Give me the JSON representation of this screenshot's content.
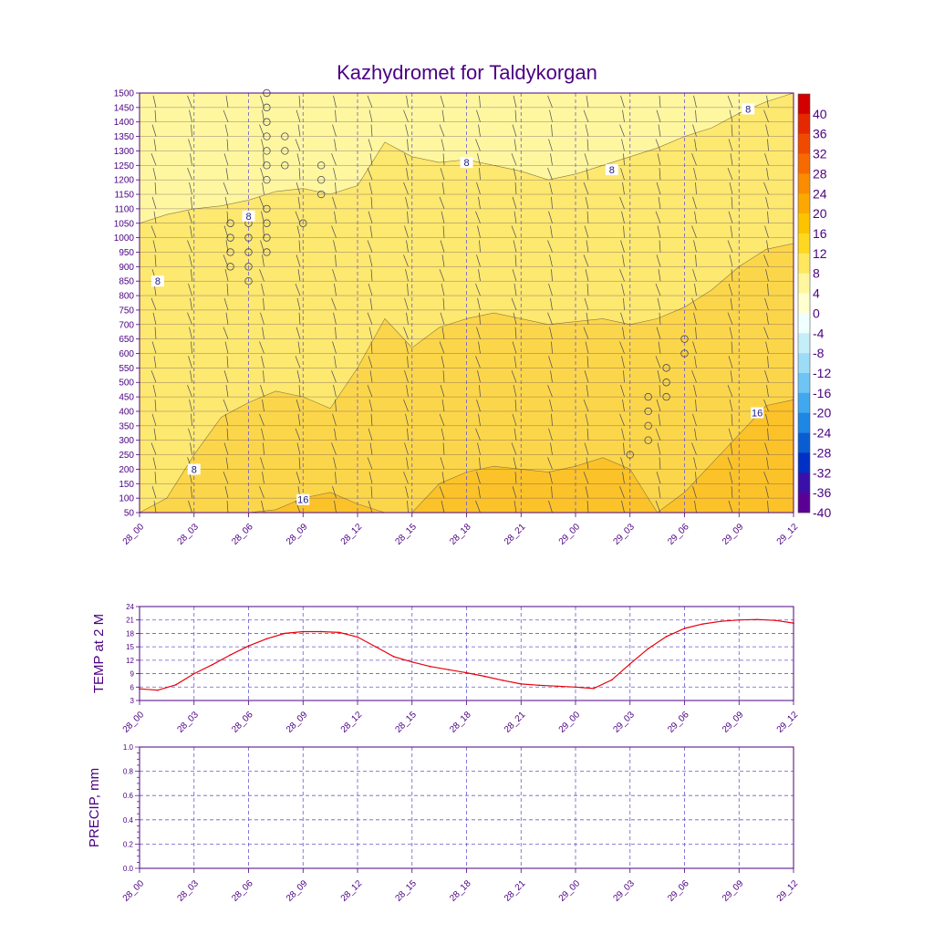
{
  "title": "Kazhydromet for Taldykorgan",
  "time_labels": [
    "28_00",
    "28_03",
    "28_06",
    "28_09",
    "28_12",
    "28_15",
    "28_18",
    "28_21",
    "29_00",
    "29_03",
    "29_06",
    "29_09",
    "29_12"
  ],
  "colors": {
    "axis": "#4b0082",
    "grid": "#6a5acd",
    "temp_line": "#e8000b",
    "barb": "#4a4a5a",
    "contour": "#8a7a40",
    "fill_0_4": "#ffffd8",
    "fill_4_8": "#fff7a0",
    "fill_8_12": "#fde870",
    "fill_12_16": "#fcd64a",
    "fill_16_20": "#fbc22a"
  },
  "chart_data": [
    {
      "id": "cross-section",
      "type": "heatmap",
      "title": "Kazhydromet for Taldykorgan",
      "xlabel": "",
      "ylabel": "",
      "x_range_hours": [
        0,
        36
      ],
      "y_ticks": [
        1500,
        1450,
        1400,
        1350,
        1300,
        1250,
        1200,
        1150,
        1100,
        1050,
        1000,
        950,
        900,
        850,
        800,
        750,
        700,
        650,
        600,
        550,
        500,
        450,
        400,
        350,
        300,
        250,
        200,
        150,
        100,
        50
      ],
      "ylim": [
        50,
        1500
      ],
      "colorbar": {
        "labels": [
          "40",
          "36",
          "32",
          "28",
          "24",
          "20",
          "16",
          "12",
          "8",
          "4",
          "0",
          "-4",
          "-8",
          "-12",
          "-16",
          "-20",
          "-24",
          "-28",
          "-32",
          "-36",
          "-40"
        ],
        "colors": [
          "#d20000",
          "#e62800",
          "#f04a00",
          "#f66a00",
          "#fa8c00",
          "#fca800",
          "#fdc200",
          "#fed820",
          "#ffe860",
          "#fff6a0",
          "#ffffd0",
          "#f0ffff",
          "#c6eef8",
          "#9cdcf6",
          "#6ec4f4",
          "#40a8ee",
          "#1e86e4",
          "#0a5cd2",
          "#0030c4",
          "#3a10a8",
          "#5a0094"
        ]
      },
      "contour_labels": [
        {
          "text": "8",
          "hour": 18,
          "level": 1260
        },
        {
          "text": "8",
          "hour": 26,
          "level": 1235
        },
        {
          "text": "8",
          "hour": 33.5,
          "level": 1445
        },
        {
          "text": "8",
          "hour": 6,
          "level": 1075
        },
        {
          "text": "8",
          "hour": 1,
          "level": 850
        },
        {
          "text": "8",
          "hour": 3,
          "level": 200
        },
        {
          "text": "16",
          "hour": 9,
          "level": 95
        },
        {
          "text": "16",
          "hour": 34,
          "level": 395
        }
      ],
      "temperature_fields": [
        {
          "band": "8-12",
          "upper_levels": [
            1050,
            1080,
            1100,
            1110,
            1130,
            1160,
            1170,
            1150,
            1180,
            1330,
            1280,
            1260,
            1270,
            1250,
            1230,
            1200,
            1220,
            1250,
            1280,
            1310,
            1350,
            1380,
            1430,
            1470,
            1500
          ]
        },
        {
          "band": "12-16",
          "upper_levels": [
            50,
            100,
            250,
            380,
            430,
            470,
            450,
            410,
            550,
            720,
            620,
            690,
            720,
            740,
            720,
            700,
            710,
            720,
            700,
            720,
            760,
            820,
            900,
            960,
            980
          ]
        },
        {
          "band": "16-20",
          "upper_levels": [
            50,
            50,
            50,
            50,
            50,
            60,
            100,
            120,
            80,
            50,
            50,
            150,
            190,
            210,
            200,
            190,
            210,
            240,
            200,
            50,
            120,
            220,
            320,
            420,
            440
          ]
        }
      ]
    },
    {
      "id": "temp-2m",
      "type": "line",
      "title": "",
      "xlabel": "",
      "ylabel": "TEMP at 2 M",
      "ylim": [
        3,
        24
      ],
      "y_ticks": [
        3,
        6,
        9,
        12,
        15,
        18,
        21,
        24
      ],
      "hours": [
        0,
        1,
        2,
        3,
        4,
        5,
        6,
        7,
        8,
        9,
        10,
        11,
        12,
        13,
        14,
        15,
        16,
        17,
        18,
        19,
        20,
        21,
        22,
        23,
        24,
        25,
        26,
        27,
        28,
        29,
        30,
        31,
        32,
        33,
        34,
        35,
        36
      ],
      "values": [
        5.6,
        5.3,
        6.5,
        9.0,
        11.0,
        13.2,
        15.2,
        16.8,
        18.0,
        18.4,
        18.4,
        18.2,
        17.2,
        15.0,
        12.8,
        11.6,
        10.6,
        9.9,
        9.2,
        8.4,
        7.5,
        6.7,
        6.4,
        6.2,
        6.0,
        5.7,
        7.6,
        11.2,
        14.6,
        17.3,
        19.1,
        20.1,
        20.7,
        21.0,
        21.1,
        20.9,
        20.3
      ]
    },
    {
      "id": "precip",
      "type": "bar",
      "title": "",
      "xlabel": "",
      "ylabel": "PRECIP, mm",
      "ylim": [
        0,
        1
      ],
      "y_ticks": [
        "0.0",
        "0.2",
        "0.4",
        "0.6",
        "0.8",
        "1.0"
      ],
      "hours": [],
      "values": []
    }
  ]
}
